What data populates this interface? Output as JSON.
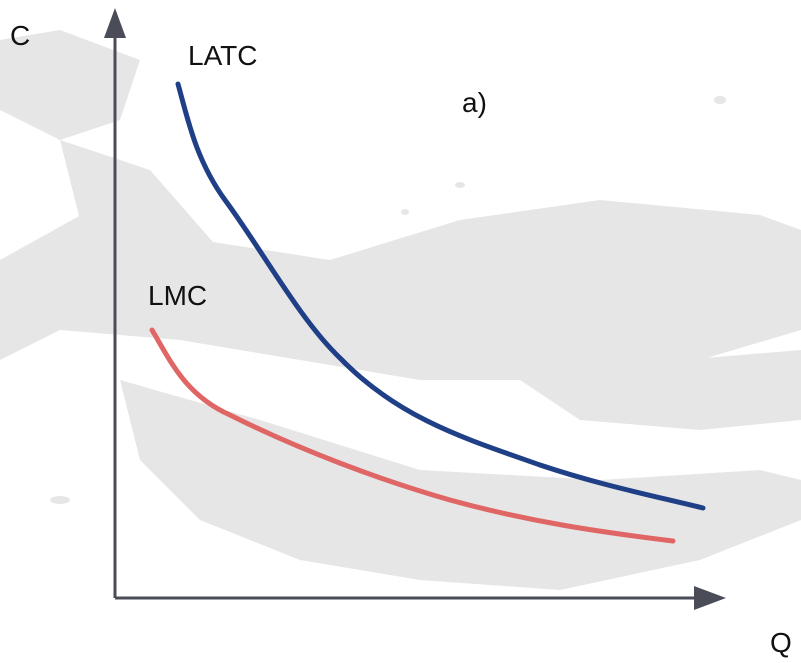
{
  "axes": {
    "y_label": "C",
    "x_label": "Q"
  },
  "curves": [
    {
      "label": "LATC"
    },
    {
      "label": "LMC"
    }
  ],
  "panel_label": "a)"
}
